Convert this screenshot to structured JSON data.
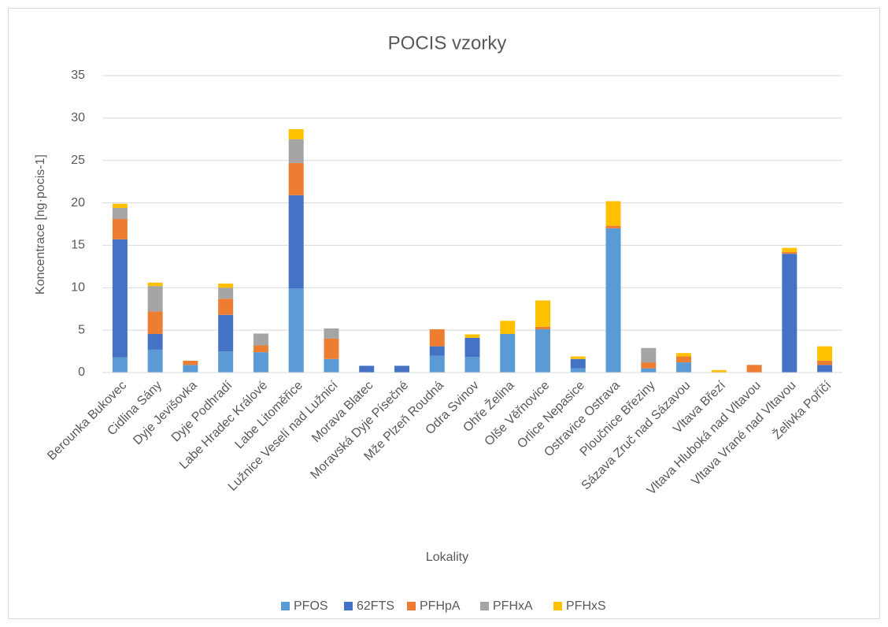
{
  "chart_data": {
    "type": "bar",
    "stacked": true,
    "title": "POCIS vzorky",
    "x_label": "Lokality",
    "y_label": "Koncentrace [ng·pocis-1]",
    "categories": [
      "Berounka Bukovec",
      "Cidlina Sány",
      "Dyje Jevišovka",
      "Dyje Podhradí",
      "Labe Hradec Králové",
      "Labe Litoměřice",
      "Lužnice Veselí nad Lužnicí",
      "Morava Blatec",
      "Moravská Dyje Písečné",
      "Mže Plzeň Roudná",
      "Odra Svinov",
      "Ohře Želina",
      "Olše Věřnovice",
      "Orlice Nepasice",
      "Ostravice Ostrava",
      "Ploučnice Březiny",
      "Sázava Zruč nad Sázavou",
      "Vltava Březí",
      "Vltava Hluboká nad Vltavou",
      "Vltava Vrané nad Vltavou",
      "Želivka Poříčí"
    ],
    "series": [
      {
        "name": "PFOS",
        "color": "#5b9bd5",
        "values": [
          1.8,
          2.7,
          0.9,
          2.5,
          2.4,
          9.9,
          1.6,
          0,
          0,
          2.0,
          1.85,
          4.55,
          5.1,
          0.5,
          17.0,
          0.5,
          1.2,
          0,
          0,
          0,
          0.1
        ]
      },
      {
        "name": "62FTS",
        "color": "#4472c4",
        "values": [
          13.9,
          1.85,
          0,
          4.3,
          0,
          11.0,
          0,
          0.8,
          0.8,
          1.1,
          2.25,
          0,
          0,
          1.1,
          0,
          0,
          0,
          0,
          0,
          14.0,
          0.8
        ]
      },
      {
        "name": "PFHpA",
        "color": "#ed7d31",
        "values": [
          2.4,
          2.65,
          0.5,
          1.9,
          0.8,
          3.8,
          2.4,
          0,
          0,
          2.0,
          0,
          0,
          0.3,
          0,
          0.3,
          0.7,
          0.7,
          0,
          0.9,
          0.2,
          0.5
        ]
      },
      {
        "name": "PFHxA",
        "color": "#a5a5a5",
        "values": [
          1.3,
          3.0,
          0,
          1.3,
          1.4,
          2.8,
          1.2,
          0,
          0,
          0,
          0,
          0,
          0,
          0,
          0,
          1.7,
          0,
          0,
          0,
          0,
          0
        ]
      },
      {
        "name": "PFHxS",
        "color": "#ffc000",
        "values": [
          0.5,
          0.4,
          0,
          0.5,
          0,
          1.2,
          0,
          0,
          0,
          0,
          0.4,
          1.55,
          3.1,
          0.3,
          2.9,
          0,
          0.4,
          0.3,
          0,
          0.5,
          1.7
        ]
      }
    ],
    "ylim": [
      0,
      35
    ],
    "yticks": [
      0,
      5,
      10,
      15,
      20,
      25,
      30,
      35
    ],
    "grid": true,
    "legend": "bottom"
  }
}
